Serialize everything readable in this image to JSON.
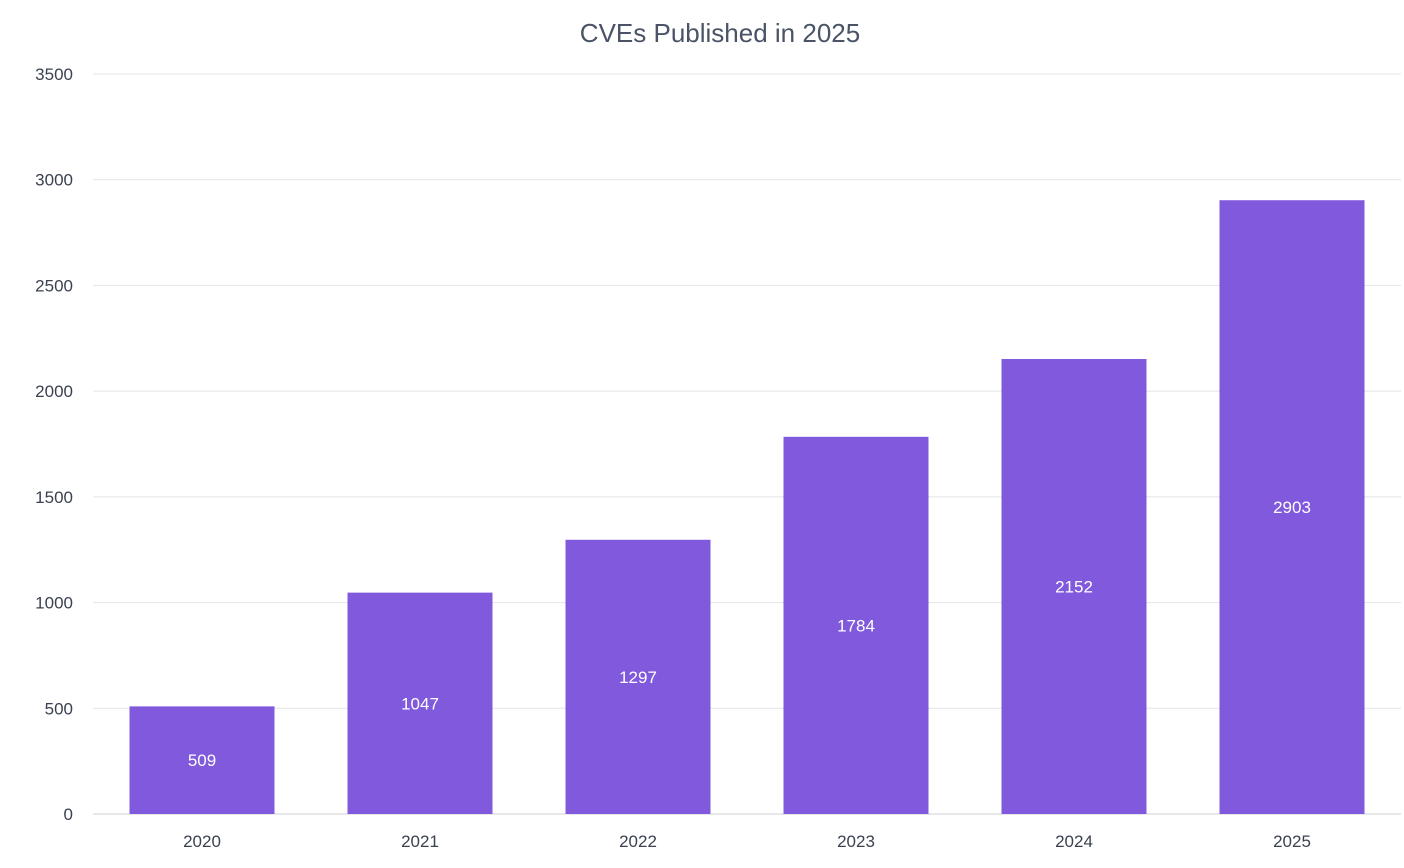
{
  "chart_data": {
    "type": "bar",
    "title": "CVEs Published in 2025",
    "categories": [
      "2020",
      "2021",
      "2022",
      "2023",
      "2024",
      "2025"
    ],
    "values": [
      509,
      1047,
      1297,
      1784,
      2152,
      2903
    ],
    "data_labels": [
      "509",
      "1047",
      "1297",
      "1784",
      "2152",
      "2903"
    ],
    "xlabel": "",
    "ylabel": "",
    "ylim": [
      0,
      3500
    ],
    "yticks": [
      0,
      500,
      1000,
      1500,
      2000,
      2500,
      3000,
      3500
    ],
    "ytick_labels": [
      "0",
      "500",
      "1000",
      "1500",
      "2000",
      "2500",
      "3000",
      "3500"
    ],
    "grid": true,
    "legend": "none",
    "bar_color": "#8059dc"
  }
}
